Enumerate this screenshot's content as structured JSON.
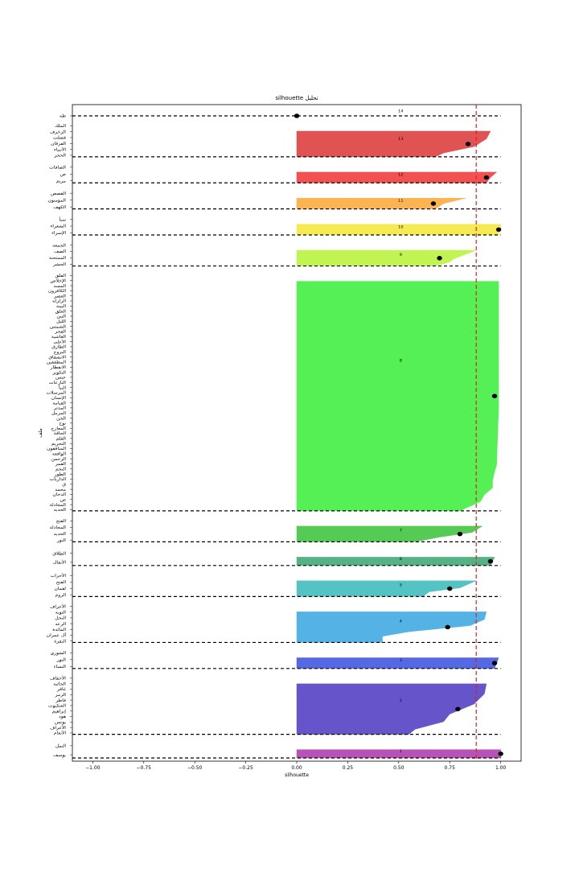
{
  "chart_data": {
    "type": "silhouette",
    "title": "silhouette تحليل",
    "xlabel": "silhouette",
    "ylabel": "ملف",
    "xlim": [
      -1.1,
      1.1
    ],
    "xticks": [
      "−1.00",
      "−0.75",
      "−0.50",
      "−0.25",
      "0.00",
      "0.25",
      "0.50",
      "0.75",
      "1.00"
    ],
    "xtick_values": [
      -1.0,
      -0.75,
      -0.5,
      -0.25,
      0.0,
      0.25,
      0.5,
      0.75,
      1.0
    ],
    "mean_silhouette": 0.88,
    "grid": false,
    "clusters": [
      {
        "id": "14",
        "color": "#d63a3a",
        "mean": 0.0,
        "profile": [],
        "labels": [
          "طه"
        ]
      },
      {
        "id": "13",
        "color": "#e04a4a",
        "mean": 0.84,
        "profile": [
          [
            0,
            0.95
          ],
          [
            0.3,
            0.93
          ],
          [
            0.6,
            0.87
          ],
          [
            0.85,
            0.72
          ],
          [
            1,
            0.68
          ]
        ],
        "labels": [
          "الملك",
          "الزخرف",
          "فصلت",
          "الفرقان",
          "الأنبياء",
          "الحجر"
        ]
      },
      {
        "id": "12",
        "color": "#f24848",
        "mean": 0.93,
        "profile": [
          [
            0,
            0.98
          ],
          [
            0.5,
            0.95
          ],
          [
            1,
            0.93
          ]
        ],
        "labels": [
          "الصافات",
          "ص",
          "مريم"
        ]
      },
      {
        "id": "11",
        "color": "#fbb148",
        "mean": 0.67,
        "profile": [
          [
            0,
            0.83
          ],
          [
            0.5,
            0.72
          ],
          [
            1,
            0.68
          ]
        ],
        "labels": [
          "القصص",
          "المؤمنون",
          "الكهف"
        ]
      },
      {
        "id": "10",
        "color": "#f6e94a",
        "mean": 0.99,
        "profile": [
          [
            0,
            1.0
          ],
          [
            0.5,
            1.0
          ],
          [
            1,
            0.99
          ]
        ],
        "labels": [
          "سبأ",
          "الشعراء",
          "الإسراء"
        ]
      },
      {
        "id": "9",
        "color": "#bef44a",
        "mean": 0.7,
        "profile": [
          [
            0,
            0.88
          ],
          [
            0.3,
            0.82
          ],
          [
            0.55,
            0.77
          ],
          [
            0.75,
            0.75
          ],
          [
            1,
            0.68
          ]
        ],
        "labels": [
          "الجمعة",
          "الصف",
          "الممتحنة",
          "الحشر"
        ]
      },
      {
        "id": "8",
        "color": "#4cf04c",
        "mean": 0.97,
        "profile": [
          [
            0,
            0.99
          ],
          [
            0.3,
            0.99
          ],
          [
            0.55,
            0.99
          ],
          [
            0.8,
            0.98
          ],
          [
            0.83,
            0.97
          ],
          [
            0.87,
            0.96
          ],
          [
            0.9,
            0.96
          ],
          [
            0.93,
            0.92
          ],
          [
            0.96,
            0.9
          ],
          [
            1,
            0.8
          ]
        ],
        "labels": [
          "الفلق",
          "الإخلاص",
          "المسد",
          "الكافرون",
          "العصر",
          "الزلزلة",
          "البينة",
          "العلق",
          "التين",
          "الليل",
          "الشمس",
          "الفجر",
          "الغاشية",
          "الأعلى",
          "الطارق",
          "البروج",
          "الانشقاق",
          "المطففين",
          "الانفطار",
          "التكوير",
          "عبس",
          "النازعات",
          "النبأ",
          "المرسلات",
          "الإنسان",
          "القيامة",
          "المدثر",
          "المزمل",
          "الجن",
          "نوح",
          "المعارج",
          "الحاقة",
          "القلم",
          "التحريم",
          "المنافقون",
          "الواقعة",
          "الرحمن",
          "القمر",
          "النجم",
          "الطور",
          "الذاريات",
          "ق",
          "محمد",
          "الدخان",
          "ص",
          "المجادلة",
          "الحديد"
        ]
      },
      {
        "id": "7",
        "color": "#4cc84c",
        "mean": 0.8,
        "profile": [
          [
            0,
            0.91
          ],
          [
            0.4,
            0.86
          ],
          [
            0.7,
            0.7
          ],
          [
            1,
            0.58
          ]
        ],
        "labels": [
          "الفتح",
          "المجادلة",
          "الحديد",
          "النور"
        ]
      },
      {
        "id": "6",
        "color": "#4cae7e",
        "mean": 0.95,
        "profile": [
          [
            0,
            0.97
          ],
          [
            1,
            0.95
          ]
        ],
        "labels": [
          "الطلاق",
          "الأنفال"
        ]
      },
      {
        "id": "5",
        "color": "#4cc0c0",
        "mean": 0.75,
        "profile": [
          [
            0,
            0.88
          ],
          [
            0.45,
            0.8
          ],
          [
            0.7,
            0.65
          ],
          [
            1,
            0.62
          ]
        ],
        "labels": [
          "الأحزاب",
          "الفتح",
          "لقمان",
          "الروم"
        ]
      },
      {
        "id": "4",
        "color": "#4caee4",
        "mean": 0.74,
        "profile": [
          [
            0,
            0.93
          ],
          [
            0.25,
            0.92
          ],
          [
            0.45,
            0.85
          ],
          [
            0.65,
            0.55
          ],
          [
            0.8,
            0.42
          ],
          [
            1,
            0.42
          ]
        ],
        "labels": [
          "الأعراف",
          "التوبة",
          "النحل",
          "الرعد",
          "المائدة",
          "آل عمران",
          "البقرة"
        ]
      },
      {
        "id": "3",
        "color": "#4c62e4",
        "mean": 0.97,
        "profile": [
          [
            0,
            0.99
          ],
          [
            0.5,
            0.98
          ],
          [
            1,
            0.97
          ]
        ],
        "labels": [
          "الشورى",
          "النور",
          "النساء"
        ]
      },
      {
        "id": "2",
        "color": "#5e4cc8",
        "mean": 0.79,
        "profile": [
          [
            0,
            0.93
          ],
          [
            0.2,
            0.92
          ],
          [
            0.4,
            0.87
          ],
          [
            0.6,
            0.75
          ],
          [
            0.75,
            0.72
          ],
          [
            0.9,
            0.58
          ],
          [
            1,
            0.55
          ]
        ],
        "labels": [
          "الأحقاف",
          "الجاثية",
          "غافر",
          "الزمر",
          "فاطر",
          "العنكبوت",
          "إبراهيم",
          "هود",
          "يونس",
          "الأعراف",
          "الأنعام"
        ]
      },
      {
        "id": "1",
        "color": "#b44ab4",
        "mean": 1.0,
        "profile": [
          [
            0,
            1.0
          ],
          [
            1,
            1.0
          ]
        ],
        "labels": [
          "النمل",
          "يوسف"
        ]
      }
    ]
  }
}
